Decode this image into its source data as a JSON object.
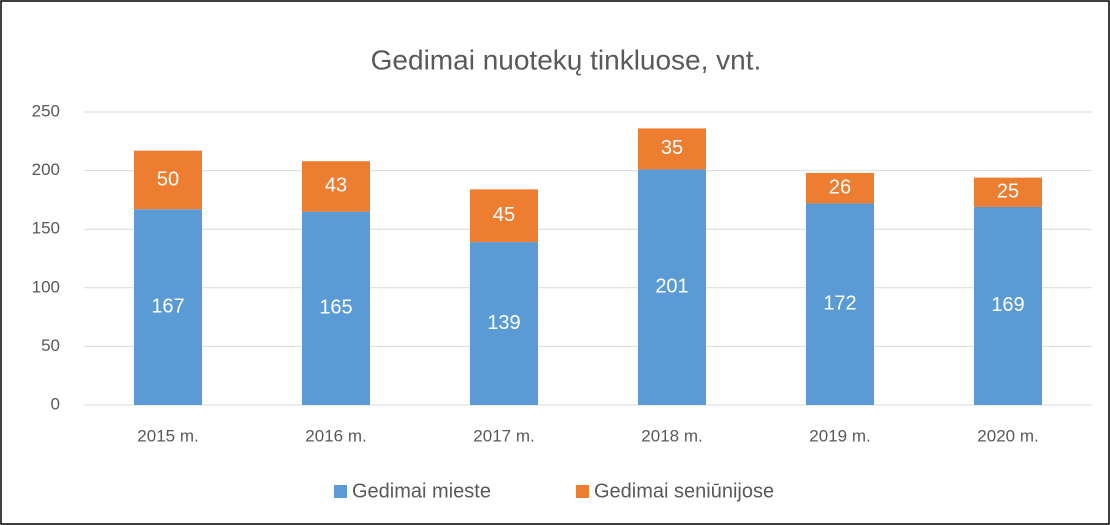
{
  "chart_data": {
    "type": "bar",
    "stacked": true,
    "title": "Gedimai nuotekų tinkluose, vnt.",
    "categories": [
      "2015 m.",
      "2016 m.",
      "2017 m.",
      "2018 m.",
      "2019 m.",
      "2020 m."
    ],
    "series": [
      {
        "name": "Gedimai mieste",
        "color": "#5b9bd5",
        "values": [
          167,
          165,
          139,
          201,
          172,
          169
        ]
      },
      {
        "name": "Gedimai seniūnijose",
        "color": "#ed7d31",
        "values": [
          50,
          43,
          45,
          35,
          26,
          25
        ]
      }
    ],
    "ylim": [
      0,
      250
    ],
    "yticks": [
      0,
      50,
      100,
      150,
      200,
      250
    ],
    "grid": true,
    "legend": "bottom"
  }
}
